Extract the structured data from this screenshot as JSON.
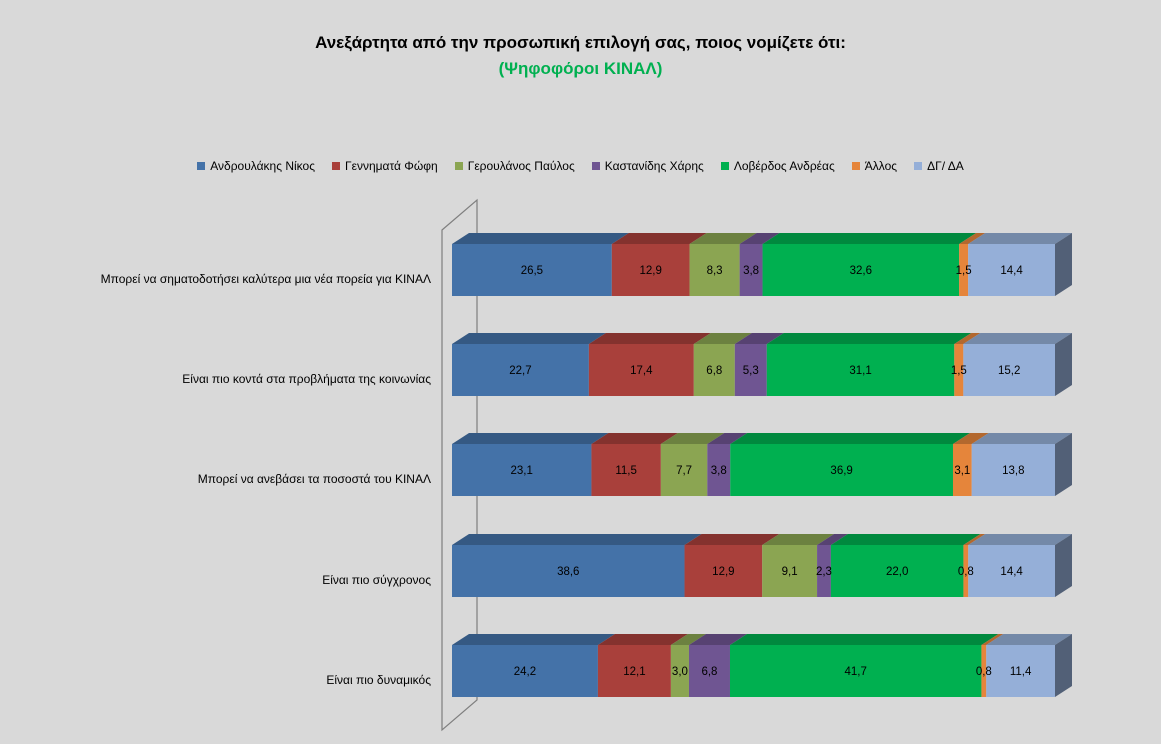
{
  "chart_data": {
    "type": "bar",
    "orientation": "horizontal",
    "stacked": "100%",
    "three_d": true,
    "title": "Ανεξάρτητα από την προσωπική επιλογή σας,  ποιος νομίζετε ότι:",
    "subtitle": "(Ψηφοφόροι ΚΙΝΑΛ)",
    "legend_position": "top",
    "grid": false,
    "categories": [
      "Μπορεί να σηματοδοτήσει καλύτερα μια νέα πορεία για  ΚΙΝΑΛ",
      "Είναι πιο κοντά στα προβλήματα της κοινωνίας",
      "Μπορεί να ανεβάσει τα ποσοστά του ΚΙΝΑΛ",
      "Είναι πιο σύγχρονος",
      "Είναι πιο δυναμικός"
    ],
    "series": [
      {
        "name": "Ανδρουλάκης Νίκος",
        "color": "#4472a8",
        "values": [
          26.5,
          22.7,
          23.1,
          38.6,
          24.2
        ],
        "labels": [
          "26,5",
          "22,7",
          "23,1",
          "38,6",
          "24,2"
        ]
      },
      {
        "name": "Γεννηματά Φώφη",
        "color": "#a9403b",
        "values": [
          12.9,
          17.4,
          11.5,
          12.9,
          12.1
        ],
        "labels": [
          "12,9",
          "17,4",
          "11,5",
          "12,9",
          "12,1"
        ]
      },
      {
        "name": "Γερουλάνος Παύλος",
        "color": "#8ba552",
        "values": [
          8.3,
          6.8,
          7.7,
          9.1,
          3.0
        ],
        "labels": [
          "8,3",
          "6,8",
          "7,7",
          "9,1",
          "3,0"
        ]
      },
      {
        "name": "Καστανίδης Χάρης",
        "color": "#6f5592",
        "values": [
          3.8,
          5.3,
          3.8,
          2.3,
          6.8
        ],
        "labels": [
          "3,8",
          "5,3",
          "3,8",
          "2,3",
          "6,8"
        ]
      },
      {
        "name": "Λοβέρδος Ανδρέας",
        "color": "#00b050",
        "values": [
          32.6,
          31.1,
          36.9,
          22.0,
          41.7
        ],
        "labels": [
          "32,6",
          "31,1",
          "36,9",
          "22,0",
          "41,7"
        ]
      },
      {
        "name": "Άλλος",
        "color": "#e5853b",
        "values": [
          1.5,
          1.5,
          3.1,
          0.8,
          0.8
        ],
        "labels": [
          "1,5",
          "1,5",
          "3,1",
          "0,8",
          "0,8"
        ]
      },
      {
        "name": "ΔΓ/ ΔΑ",
        "color": "#95afd8",
        "values": [
          14.4,
          15.2,
          13.8,
          14.4,
          11.4
        ],
        "labels": [
          "14,4",
          "15,2",
          "13,8",
          "14,4",
          "11,4"
        ]
      }
    ]
  }
}
